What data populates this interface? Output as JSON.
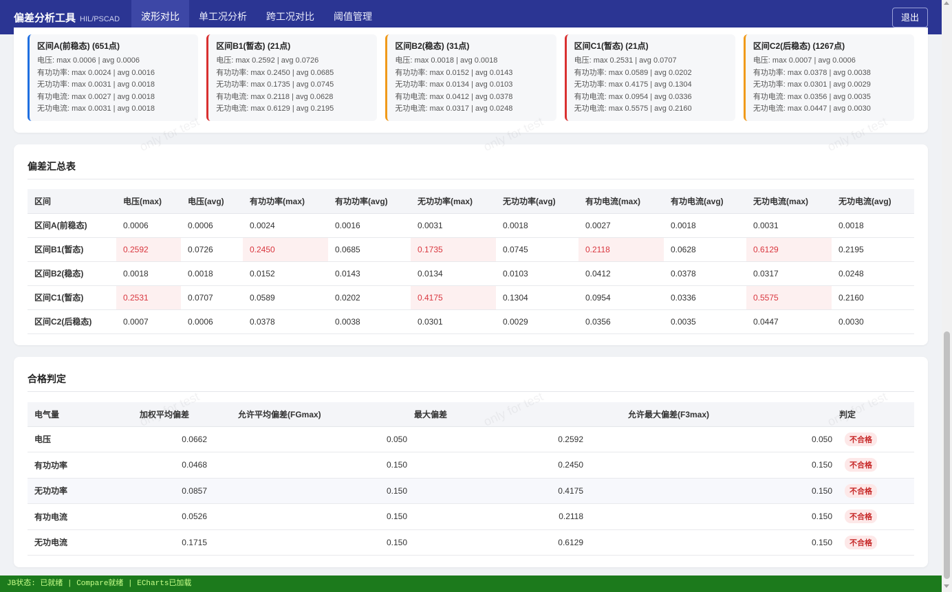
{
  "header": {
    "app_name": "偏差分析工具",
    "app_sub": "HIL/PSCAD",
    "tabs": [
      "波形对比",
      "单工况分析",
      "跨工况对比",
      "阈值管理"
    ],
    "active_tab": 0,
    "logout_label": "退出",
    "bg_color": "#2b3593"
  },
  "intervals": [
    {
      "title": "区间A(前稳态) (651点)",
      "color": "#1f6fe0",
      "lines": [
        "电压: max 0.0006 | avg 0.0006",
        "有功功率: max 0.0024 | avg 0.0016",
        "无功功率: max 0.0031 | avg 0.0018",
        "有功电流: max 0.0027 | avg 0.0018",
        "无功电流: max 0.0031 | avg 0.0018"
      ]
    },
    {
      "title": "区间B1(暂态) (21点)",
      "color": "#d93030",
      "lines": [
        "电压: max 0.2592 | avg 0.0726",
        "有功功率: max 0.2450 | avg 0.0685",
        "无功功率: max 0.1735 | avg 0.0745",
        "有功电流: max 0.2118 | avg 0.0628",
        "无功电流: max 0.6129 | avg 0.2195"
      ]
    },
    {
      "title": "区间B2(稳态) (31点)",
      "color": "#f09a1a",
      "lines": [
        "电压: max 0.0018 | avg 0.0018",
        "有功功率: max 0.0152 | avg 0.0143",
        "无功功率: max 0.0134 | avg 0.0103",
        "有功电流: max 0.0412 | avg 0.0378",
        "无功电流: max 0.0317 | avg 0.0248"
      ]
    },
    {
      "title": "区间C1(暂态) (21点)",
      "color": "#d93030",
      "lines": [
        "电压: max 0.2531 | avg 0.0707",
        "有功功率: max 0.0589 | avg 0.0202",
        "无功功率: max 0.4175 | avg 0.1304",
        "有功电流: max 0.0954 | avg 0.0336",
        "无功电流: max 0.5575 | avg 0.2160"
      ]
    },
    {
      "title": "区间C2(后稳态) (1267点)",
      "color": "#f09a1a",
      "lines": [
        "电压: max 0.0007 | avg 0.0006",
        "有功功率: max 0.0378 | avg 0.0038",
        "无功功率: max 0.0301 | avg 0.0029",
        "有功电流: max 0.0356 | avg 0.0035",
        "无功电流: max 0.0447 | avg 0.0030"
      ]
    }
  ],
  "summary": {
    "title": "偏差汇总表",
    "headers": [
      "区间",
      "电压(max)",
      "电压(avg)",
      "有功功率(max)",
      "有功功率(avg)",
      "无功功率(max)",
      "无功功率(avg)",
      "有功电流(max)",
      "有功电流(avg)",
      "无功电流(max)",
      "无功电流(avg)"
    ],
    "rows": [
      {
        "cells": [
          "区间A(前稳态)",
          "0.0006",
          "0.0006",
          "0.0024",
          "0.0016",
          "0.0031",
          "0.0018",
          "0.0027",
          "0.0018",
          "0.0031",
          "0.0018"
        ],
        "bad": []
      },
      {
        "cells": [
          "区间B1(暂态)",
          "0.2592",
          "0.0726",
          "0.2450",
          "0.0685",
          "0.1735",
          "0.0745",
          "0.2118",
          "0.0628",
          "0.6129",
          "0.2195"
        ],
        "bad": [
          1,
          3,
          5,
          7,
          9
        ]
      },
      {
        "cells": [
          "区间B2(稳态)",
          "0.0018",
          "0.0018",
          "0.0152",
          "0.0143",
          "0.0134",
          "0.0103",
          "0.0412",
          "0.0378",
          "0.0317",
          "0.0248"
        ],
        "bad": []
      },
      {
        "cells": [
          "区间C1(暂态)",
          "0.2531",
          "0.0707",
          "0.0589",
          "0.0202",
          "0.4175",
          "0.1304",
          "0.0954",
          "0.0336",
          "0.5575",
          "0.2160"
        ],
        "bad": [
          1,
          5,
          9
        ]
      },
      {
        "cells": [
          "区间C2(后稳态)",
          "0.0007",
          "0.0006",
          "0.0378",
          "0.0038",
          "0.0301",
          "0.0029",
          "0.0356",
          "0.0035",
          "0.0447",
          "0.0030"
        ],
        "bad": []
      }
    ]
  },
  "pass": {
    "title": "合格判定",
    "headers": [
      "电气量",
      "加权平均偏差",
      "允许平均偏差(FGmax)",
      "最大偏差",
      "允许最大偏差(F3max)",
      "判定"
    ],
    "rows": [
      {
        "name": "电压",
        "wavg": "0.0662",
        "wavg_status": "red",
        "fgmax": "0.050",
        "max": "0.2592",
        "f3max": "0.050",
        "verdict": "不合格"
      },
      {
        "name": "有功功率",
        "wavg": "0.0468",
        "wavg_status": "green",
        "fgmax": "0.150",
        "max": "0.2450",
        "f3max": "0.150",
        "verdict": "不合格"
      },
      {
        "name": "无功功率",
        "wavg": "0.0857",
        "wavg_status": "green",
        "fgmax": "0.150",
        "max": "0.4175",
        "f3max": "0.150",
        "verdict": "不合格"
      },
      {
        "name": "有功电流",
        "wavg": "0.0526",
        "wavg_status": "green",
        "fgmax": "0.150",
        "max": "0.2118",
        "f3max": "0.150",
        "verdict": "不合格"
      },
      {
        "name": "无功电流",
        "wavg": "0.1715",
        "wavg_status": "red",
        "fgmax": "0.150",
        "max": "0.6129",
        "f3max": "0.150",
        "verdict": "不合格"
      }
    ]
  },
  "watermark": "only for test",
  "status_bar": "JB状态: 已就绪 | Compare就绪 | ECharts已加载"
}
